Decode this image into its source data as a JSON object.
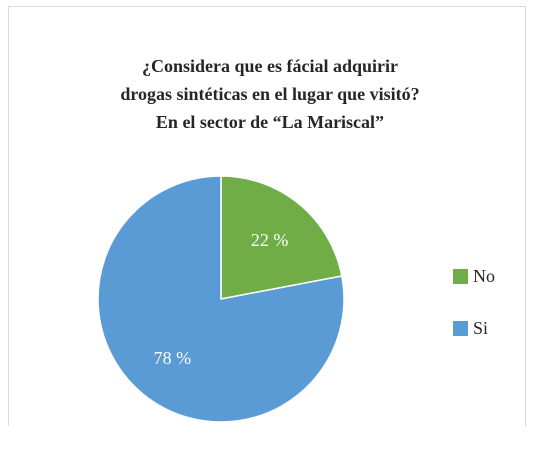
{
  "chart_data": {
    "type": "pie",
    "title_lines": [
      "¿Considera que es fácial adquirir",
      "drogas sintéticas en el lugar que visitó?",
      "En el sector de “La Mariscal”"
    ],
    "categories": [
      "No",
      "Si"
    ],
    "values": [
      22,
      78
    ],
    "value_labels": [
      "22 %",
      "78 %"
    ],
    "colors": [
      "#70ad47",
      "#5b9bd5"
    ],
    "legend_position": "right"
  }
}
